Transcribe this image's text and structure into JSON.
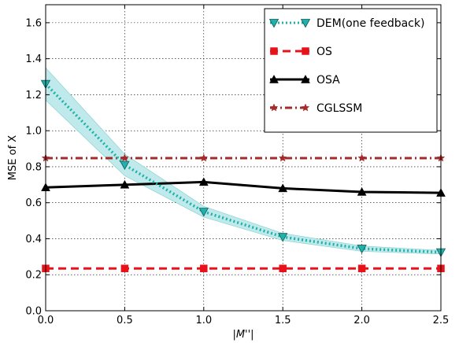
{
  "chart_data": {
    "type": "line",
    "xlabel": "|M''|",
    "ylabel": "MSE of X",
    "xlim": [
      0,
      2.5
    ],
    "ylim": [
      0,
      1.7
    ],
    "x_ticks": [
      "0.0",
      "0.5",
      "1.0",
      "1.5",
      "2.0",
      "2.5"
    ],
    "y_ticks": [
      "0.0",
      "0.2",
      "0.4",
      "0.6",
      "0.8",
      "1.0",
      "1.2",
      "1.4",
      "1.6"
    ],
    "grid": true,
    "legend_position": "top-right",
    "x": [
      0.0,
      0.5,
      1.0,
      1.5,
      2.0,
      2.5
    ],
    "series": [
      {
        "name": "DEM(one feedback)",
        "values": [
          1.26,
          0.81,
          0.55,
          0.41,
          0.345,
          0.325
        ],
        "band_upper": [
          1.35,
          0.87,
          0.58,
          0.43,
          0.36,
          0.335
        ],
        "band_lower": [
          1.17,
          0.75,
          0.52,
          0.39,
          0.33,
          0.315
        ],
        "color": "#20b2aa",
        "band_color": "#bfe9ea",
        "line_style": "dotted",
        "marker": "triangle-down"
      },
      {
        "name": "OS",
        "values": [
          0.235,
          0.235,
          0.235,
          0.235,
          0.235,
          0.235
        ],
        "color": "#e8121a",
        "line_style": "dashed",
        "marker": "square"
      },
      {
        "name": "OSA",
        "values": [
          0.685,
          0.7,
          0.715,
          0.68,
          0.66,
          0.655
        ],
        "color": "#000000",
        "line_style": "solid",
        "marker": "triangle-up"
      },
      {
        "name": "CGLSSM",
        "values": [
          0.848,
          0.848,
          0.848,
          0.848,
          0.848,
          0.848
        ],
        "color": "#a52a2a",
        "line_style": "dashdot",
        "marker": "star"
      }
    ]
  }
}
